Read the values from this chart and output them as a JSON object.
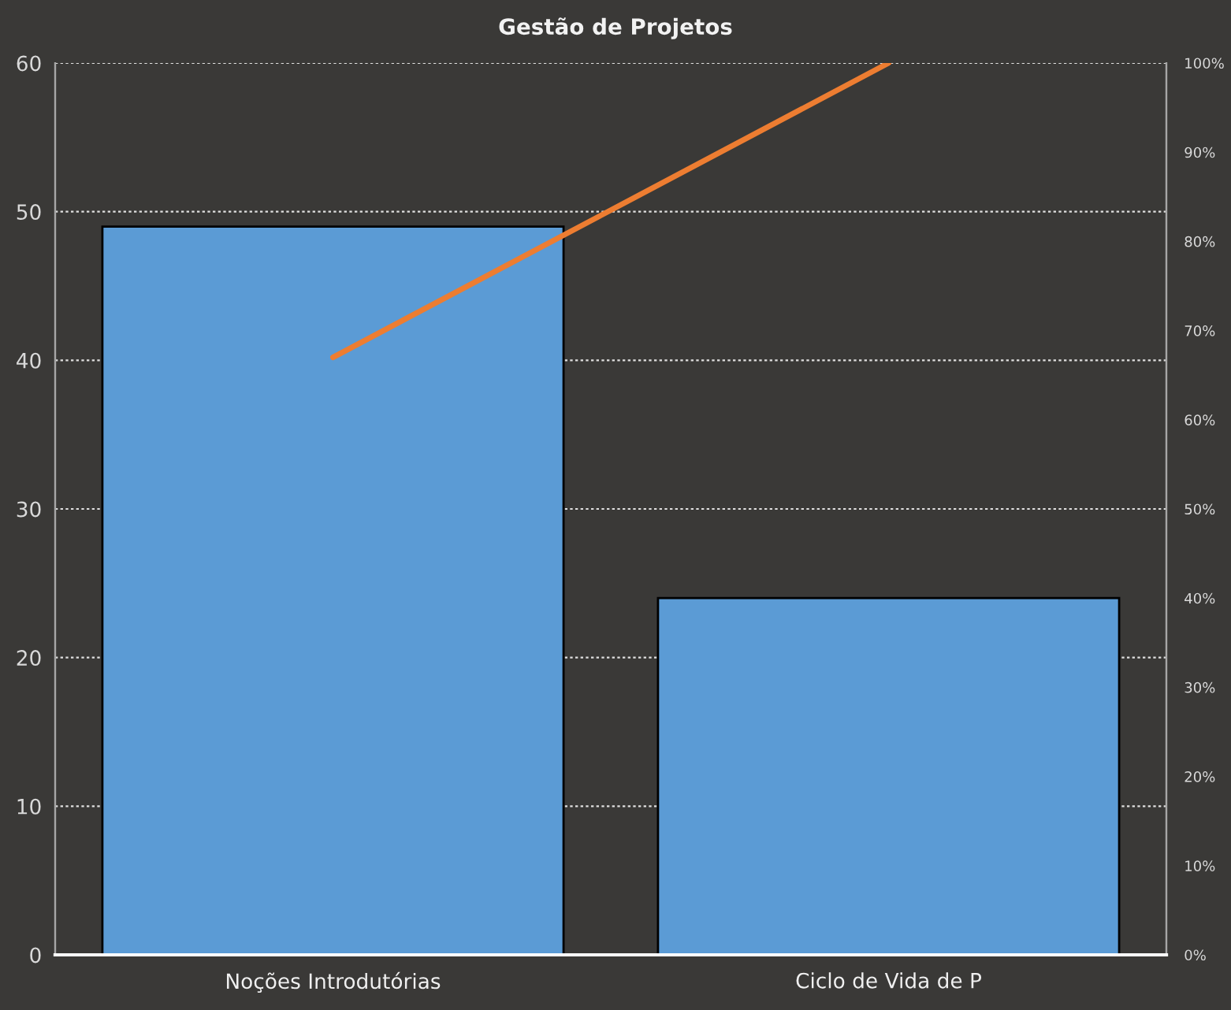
{
  "chart_data": {
    "type": "bar",
    "title": "Gestão de Projetos",
    "categories": [
      "Noções Introdutórias",
      "Ciclo de Vida de P"
    ],
    "series": [
      {
        "color": "#5b9bd5",
        "values": [
          49,
          24
        ]
      },
      {
        "type": "line",
        "axis": "y2",
        "color": "#ed7d31",
        "values": [
          67,
          100
        ]
      }
    ],
    "ylim": [
      0,
      60
    ],
    "yticks": [
      0,
      10,
      20,
      30,
      40,
      50,
      60
    ],
    "y2lim": [
      0,
      100
    ],
    "y2ticks": [
      {
        "value": 0,
        "label": "0%"
      },
      {
        "value": 10,
        "label": "10%"
      },
      {
        "value": 20,
        "label": "20%"
      },
      {
        "value": 30,
        "label": "30%"
      },
      {
        "value": 40,
        "label": "40%"
      },
      {
        "value": 50,
        "label": "50%"
      },
      {
        "value": 60,
        "label": "60%"
      },
      {
        "value": 70,
        "label": "70%"
      },
      {
        "value": 80,
        "label": "80%"
      },
      {
        "value": 90,
        "label": "90%"
      },
      {
        "value": 100,
        "label": "100%"
      }
    ],
    "grid": "y",
    "line_style": "solid"
  }
}
